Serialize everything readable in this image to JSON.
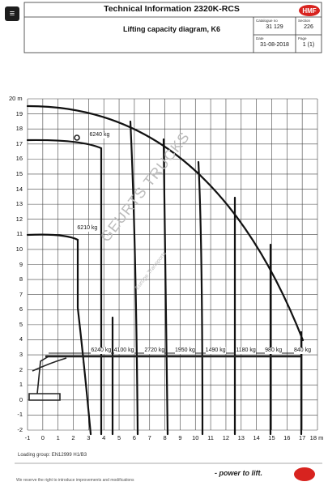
{
  "header": {
    "title": "Technical Information  2320K-RCS",
    "subtitle": "Lifting capacity diagram, K6",
    "catalogue_label": "Catalogue no",
    "catalogue_value": "31 129",
    "section_label": "Section",
    "section_value": "226",
    "date_label": "Date",
    "date_value": "31-08-2018",
    "page_label": "Page",
    "page_value": "1 (1)",
    "logo_text": "HMF",
    "corner_symbol": "≡"
  },
  "chart_data": {
    "type": "line",
    "x_unit": "m",
    "y_unit": "m",
    "xlim": [
      -1,
      17
    ],
    "ylim": [
      -2,
      20
    ],
    "x_ticks": [
      "-1",
      "0",
      "1",
      "2",
      "3",
      "4",
      "5",
      "6",
      "7",
      "8",
      "9",
      "10",
      "11",
      "12",
      "13",
      "14",
      "15",
      "16",
      "17",
      "18 m"
    ],
    "y_ticks": [
      "20 m",
      "19",
      "18",
      "17",
      "16",
      "15",
      "14",
      "13",
      "12",
      "11",
      "10",
      "9",
      "8",
      "7",
      "6",
      "5",
      "4",
      "3",
      "2",
      "1",
      "0",
      "-1",
      "-2"
    ],
    "grid": true,
    "capacities": [
      {
        "label": "6240 kg",
        "x": 2.9,
        "y": 17.3
      },
      {
        "label": "6210 kg",
        "x": 2.1,
        "y": 11.1
      },
      {
        "label": "6240 kg",
        "x": 3.0,
        "y": 3.0
      },
      {
        "label": "4100 kg",
        "x": 4.5,
        "y": 3.0
      },
      {
        "label": "2720 kg",
        "x": 6.5,
        "y": 3.0
      },
      {
        "label": "1950 kg",
        "x": 8.5,
        "y": 3.0
      },
      {
        "label": "1490 kg",
        "x": 10.5,
        "y": 3.0
      },
      {
        "label": "1180 kg",
        "x": 12.5,
        "y": 3.0
      },
      {
        "label": "980 kg",
        "x": 14.4,
        "y": 3.0
      },
      {
        "label": "840 kg",
        "x": 16.3,
        "y": 3.0
      }
    ]
  },
  "watermark": {
    "text": "GEURTS TRUCKS",
    "subtext": "Europe Transports"
  },
  "footer": {
    "loading_group": "Loading group:  EN12999 H1/B3",
    "rights": "We reserve the right to introduce improvements and modifications",
    "slogan": "- power to lift.",
    "accent_color": "#d8231f"
  }
}
